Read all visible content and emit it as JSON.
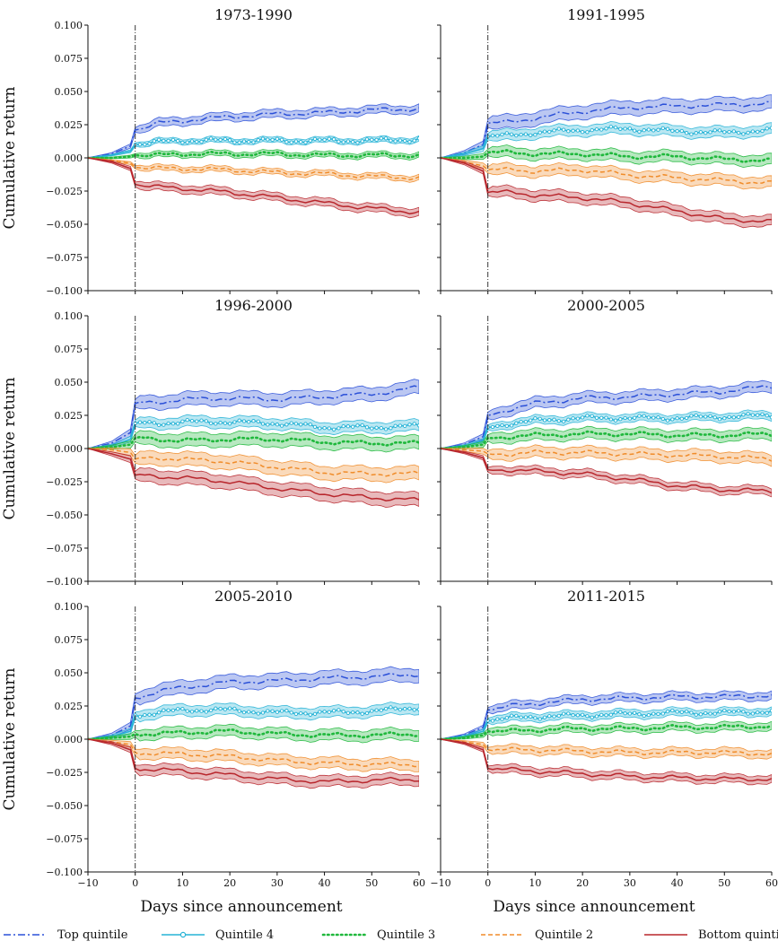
{
  "figure": {
    "xlabel": "Days since announcement",
    "ylabel": "Cumulative return",
    "x_ticks": [
      -10,
      0,
      10,
      20,
      30,
      40,
      50,
      60
    ],
    "x_tick_labels": [
      "−10",
      "0",
      "10",
      "20",
      "30",
      "40",
      "50",
      "60"
    ],
    "y_ticks": [
      -0.1,
      -0.075,
      -0.05,
      -0.025,
      0.0,
      0.025,
      0.05,
      0.075,
      0.1
    ],
    "y_tick_labels": [
      "−0.100",
      "−0.075",
      "−0.050",
      "−0.025",
      "0.000",
      "0.025",
      "0.050",
      "0.075",
      "0.100"
    ],
    "legend_position": "bottom"
  },
  "legend": [
    {
      "name": "Top quintile",
      "color": "#2b50d8",
      "style": "dashdot"
    },
    {
      "name": "Quintile 4",
      "color": "#27b3d6",
      "style": "circle-markers"
    },
    {
      "name": "Quintile 3",
      "color": "#1fb83c",
      "style": "dotted"
    },
    {
      "name": "Quintile 2",
      "color": "#f08c2a",
      "style": "dashed"
    },
    {
      "name": "Bottom quintile",
      "color": "#b8262c",
      "style": "solid"
    }
  ],
  "chart_data": [
    {
      "type": "line",
      "title": "1973-1990",
      "xlim": [
        -10,
        60
      ],
      "ylim": [
        -0.1,
        0.1
      ],
      "event_line_x": 0,
      "series": [
        {
          "name": "Top quintile",
          "x": [
            -10,
            -5,
            -1,
            0,
            5,
            10,
            20,
            30,
            40,
            50,
            60
          ],
          "y": [
            0,
            0.003,
            0.009,
            0.021,
            0.026,
            0.028,
            0.031,
            0.033,
            0.034,
            0.036,
            0.037
          ],
          "band": 0.003
        },
        {
          "name": "Quintile 4",
          "x": [
            -10,
            -5,
            -1,
            0,
            5,
            10,
            20,
            30,
            40,
            50,
            60
          ],
          "y": [
            0,
            0.002,
            0.005,
            0.01,
            0.012,
            0.013,
            0.013,
            0.013,
            0.013,
            0.013,
            0.014
          ],
          "band": 0.002
        },
        {
          "name": "Quintile 3",
          "x": [
            -10,
            -5,
            -1,
            0,
            5,
            10,
            20,
            30,
            40,
            50,
            60
          ],
          "y": [
            0,
            0.0,
            0.001,
            0.002,
            0.002,
            0.003,
            0.003,
            0.003,
            0.002,
            0.002,
            0.002
          ],
          "band": 0.002
        },
        {
          "name": "Quintile 2",
          "x": [
            -10,
            -5,
            -1,
            0,
            5,
            10,
            20,
            30,
            40,
            50,
            60
          ],
          "y": [
            0,
            -0.002,
            -0.004,
            -0.007,
            -0.008,
            -0.008,
            -0.009,
            -0.011,
            -0.012,
            -0.014,
            -0.015
          ],
          "band": 0.002
        },
        {
          "name": "Bottom quintile",
          "x": [
            -10,
            -5,
            -1,
            0,
            5,
            10,
            20,
            30,
            40,
            50,
            60
          ],
          "y": [
            0,
            -0.003,
            -0.008,
            -0.02,
            -0.022,
            -0.023,
            -0.026,
            -0.03,
            -0.034,
            -0.038,
            -0.041
          ],
          "band": 0.003
        }
      ]
    },
    {
      "type": "line",
      "title": "1991-1995",
      "xlim": [
        -10,
        60
      ],
      "ylim": [
        -0.1,
        0.1
      ],
      "event_line_x": 0,
      "series": [
        {
          "name": "Top quintile",
          "x": [
            -10,
            -5,
            -1,
            0,
            5,
            10,
            20,
            30,
            40,
            50,
            60
          ],
          "y": [
            0,
            0.004,
            0.01,
            0.026,
            0.027,
            0.03,
            0.035,
            0.038,
            0.039,
            0.04,
            0.041
          ],
          "band": 0.005
        },
        {
          "name": "Quintile 4",
          "x": [
            -10,
            -5,
            -1,
            0,
            5,
            10,
            20,
            30,
            40,
            50,
            60
          ],
          "y": [
            0,
            0.003,
            0.007,
            0.016,
            0.017,
            0.019,
            0.021,
            0.022,
            0.02,
            0.019,
            0.021
          ],
          "band": 0.004
        },
        {
          "name": "Quintile 3",
          "x": [
            -10,
            -5,
            -1,
            0,
            5,
            10,
            20,
            30,
            40,
            50,
            60
          ],
          "y": [
            0,
            0.0,
            0.001,
            0.004,
            0.004,
            0.003,
            0.003,
            0.001,
            0.001,
            -0.001,
            -0.002
          ],
          "band": 0.004
        },
        {
          "name": "Quintile 2",
          "x": [
            -10,
            -5,
            -1,
            0,
            5,
            10,
            20,
            30,
            40,
            50,
            60
          ],
          "y": [
            0,
            -0.003,
            -0.006,
            -0.009,
            -0.009,
            -0.01,
            -0.009,
            -0.013,
            -0.015,
            -0.017,
            -0.019
          ],
          "band": 0.004
        },
        {
          "name": "Bottom quintile",
          "x": [
            -10,
            -5,
            -1,
            0,
            5,
            10,
            20,
            30,
            40,
            50,
            60
          ],
          "y": [
            0,
            -0.004,
            -0.01,
            -0.026,
            -0.026,
            -0.028,
            -0.03,
            -0.034,
            -0.04,
            -0.046,
            -0.048
          ],
          "band": 0.004
        }
      ]
    },
    {
      "type": "line",
      "title": "1996-2000",
      "xlim": [
        -10,
        60
      ],
      "ylim": [
        -0.1,
        0.1
      ],
      "event_line_x": 0,
      "series": [
        {
          "name": "Top quintile",
          "x": [
            -10,
            -5,
            -1,
            0,
            5,
            10,
            20,
            30,
            40,
            50,
            60
          ],
          "y": [
            0,
            0.004,
            0.012,
            0.034,
            0.035,
            0.037,
            0.038,
            0.037,
            0.039,
            0.041,
            0.046
          ],
          "band": 0.005
        },
        {
          "name": "Quintile 4",
          "x": [
            -10,
            -5,
            -1,
            0,
            5,
            10,
            20,
            30,
            40,
            50,
            60
          ],
          "y": [
            0,
            0.002,
            0.007,
            0.019,
            0.019,
            0.02,
            0.02,
            0.019,
            0.016,
            0.016,
            0.017
          ],
          "band": 0.004
        },
        {
          "name": "Quintile 3",
          "x": [
            -10,
            -5,
            -1,
            0,
            5,
            10,
            20,
            30,
            40,
            50,
            60
          ],
          "y": [
            0,
            0.001,
            0.003,
            0.008,
            0.007,
            0.006,
            0.007,
            0.007,
            0.005,
            0.004,
            0.004
          ],
          "band": 0.005
        },
        {
          "name": "Quintile 2",
          "x": [
            -10,
            -5,
            -1,
            0,
            5,
            10,
            20,
            30,
            40,
            50,
            60
          ],
          "y": [
            0,
            -0.001,
            -0.003,
            -0.008,
            -0.007,
            -0.008,
            -0.01,
            -0.014,
            -0.018,
            -0.019,
            -0.019
          ],
          "band": 0.005
        },
        {
          "name": "Bottom quintile",
          "x": [
            -10,
            -5,
            -1,
            0,
            5,
            10,
            20,
            30,
            40,
            50,
            60
          ],
          "y": [
            0,
            -0.004,
            -0.008,
            -0.02,
            -0.021,
            -0.022,
            -0.025,
            -0.03,
            -0.034,
            -0.037,
            -0.039
          ],
          "band": 0.005
        }
      ]
    },
    {
      "type": "line",
      "title": "2000-2005",
      "xlim": [
        -10,
        60
      ],
      "ylim": [
        -0.1,
        0.1
      ],
      "event_line_x": 0,
      "series": [
        {
          "name": "Top quintile",
          "x": [
            -10,
            -5,
            -1,
            0,
            5,
            10,
            20,
            30,
            40,
            50,
            60
          ],
          "y": [
            0,
            0.003,
            0.009,
            0.025,
            0.03,
            0.034,
            0.038,
            0.039,
            0.041,
            0.043,
            0.047
          ],
          "band": 0.004
        },
        {
          "name": "Quintile 4",
          "x": [
            -10,
            -5,
            -1,
            0,
            5,
            10,
            20,
            30,
            40,
            50,
            60
          ],
          "y": [
            0,
            0.002,
            0.006,
            0.016,
            0.019,
            0.021,
            0.023,
            0.023,
            0.023,
            0.024,
            0.025
          ],
          "band": 0.003
        },
        {
          "name": "Quintile 3",
          "x": [
            -10,
            -5,
            -1,
            0,
            5,
            10,
            20,
            30,
            40,
            50,
            60
          ],
          "y": [
            0,
            0.001,
            0.003,
            0.008,
            0.009,
            0.01,
            0.011,
            0.011,
            0.01,
            0.01,
            0.011
          ],
          "band": 0.004
        },
        {
          "name": "Quintile 2",
          "x": [
            -10,
            -5,
            -1,
            0,
            5,
            10,
            20,
            30,
            40,
            50,
            60
          ],
          "y": [
            0,
            -0.001,
            -0.002,
            -0.004,
            -0.004,
            -0.003,
            -0.003,
            -0.004,
            -0.005,
            -0.006,
            -0.008
          ],
          "band": 0.004
        },
        {
          "name": "Bottom quintile",
          "x": [
            -10,
            -5,
            -1,
            0,
            5,
            10,
            20,
            30,
            40,
            50,
            60
          ],
          "y": [
            0,
            -0.003,
            -0.007,
            -0.016,
            -0.016,
            -0.017,
            -0.019,
            -0.023,
            -0.028,
            -0.031,
            -0.032
          ],
          "band": 0.003
        }
      ]
    },
    {
      "type": "line",
      "title": "2005-2010",
      "xlim": [
        -10,
        60
      ],
      "ylim": [
        -0.1,
        0.1
      ],
      "event_line_x": 0,
      "series": [
        {
          "name": "Top quintile",
          "x": [
            -10,
            -5,
            -1,
            0,
            5,
            10,
            20,
            30,
            40,
            50,
            60
          ],
          "y": [
            0,
            0.003,
            0.01,
            0.031,
            0.036,
            0.039,
            0.043,
            0.044,
            0.046,
            0.047,
            0.049
          ],
          "band": 0.005
        },
        {
          "name": "Quintile 4",
          "x": [
            -10,
            -5,
            -1,
            0,
            5,
            10,
            20,
            30,
            40,
            50,
            60
          ],
          "y": [
            0,
            0.002,
            0.006,
            0.018,
            0.02,
            0.022,
            0.022,
            0.02,
            0.02,
            0.021,
            0.024
          ],
          "band": 0.004
        },
        {
          "name": "Quintile 3",
          "x": [
            -10,
            -5,
            -1,
            0,
            5,
            10,
            20,
            30,
            40,
            50,
            60
          ],
          "y": [
            0,
            0.001,
            0.002,
            0.004,
            0.004,
            0.005,
            0.006,
            0.004,
            0.003,
            0.003,
            0.004
          ],
          "band": 0.004
        },
        {
          "name": "Quintile 2",
          "x": [
            -10,
            -5,
            -1,
            0,
            5,
            10,
            20,
            30,
            40,
            50,
            60
          ],
          "y": [
            0,
            -0.002,
            -0.004,
            -0.01,
            -0.011,
            -0.011,
            -0.013,
            -0.016,
            -0.018,
            -0.019,
            -0.019
          ],
          "band": 0.004
        },
        {
          "name": "Bottom quintile",
          "x": [
            -10,
            -5,
            -1,
            0,
            5,
            10,
            20,
            30,
            40,
            50,
            60
          ],
          "y": [
            0,
            -0.003,
            -0.008,
            -0.022,
            -0.023,
            -0.024,
            -0.027,
            -0.03,
            -0.032,
            -0.031,
            -0.03
          ],
          "band": 0.004
        }
      ]
    },
    {
      "type": "line",
      "title": "2011-2015",
      "xlim": [
        -10,
        60
      ],
      "ylim": [
        -0.1,
        0.1
      ],
      "event_line_x": 0,
      "series": [
        {
          "name": "Top quintile",
          "x": [
            -10,
            -5,
            -1,
            0,
            5,
            10,
            20,
            30,
            40,
            50,
            60
          ],
          "y": [
            0,
            0.003,
            0.009,
            0.022,
            0.025,
            0.027,
            0.03,
            0.031,
            0.032,
            0.032,
            0.033
          ],
          "band": 0.003
        },
        {
          "name": "Quintile 4",
          "x": [
            -10,
            -5,
            -1,
            0,
            5,
            10,
            20,
            30,
            40,
            50,
            60
          ],
          "y": [
            0,
            0.002,
            0.006,
            0.014,
            0.016,
            0.017,
            0.018,
            0.019,
            0.02,
            0.02,
            0.021
          ],
          "band": 0.003
        },
        {
          "name": "Quintile 3",
          "x": [
            -10,
            -5,
            -1,
            0,
            5,
            10,
            20,
            30,
            40,
            50,
            60
          ],
          "y": [
            0,
            0.001,
            0.003,
            0.006,
            0.006,
            0.007,
            0.008,
            0.008,
            0.009,
            0.009,
            0.01
          ],
          "band": 0.003
        },
        {
          "name": "Quintile 2",
          "x": [
            -10,
            -5,
            -1,
            0,
            5,
            10,
            20,
            30,
            40,
            50,
            60
          ],
          "y": [
            0,
            -0.002,
            -0.004,
            -0.008,
            -0.008,
            -0.008,
            -0.009,
            -0.01,
            -0.01,
            -0.01,
            -0.011
          ],
          "band": 0.003
        },
        {
          "name": "Bottom quintile",
          "x": [
            -10,
            -5,
            -1,
            0,
            5,
            10,
            20,
            30,
            40,
            50,
            60
          ],
          "y": [
            0,
            -0.003,
            -0.008,
            -0.022,
            -0.023,
            -0.024,
            -0.026,
            -0.028,
            -0.029,
            -0.03,
            -0.03
          ],
          "band": 0.003
        }
      ]
    }
  ]
}
